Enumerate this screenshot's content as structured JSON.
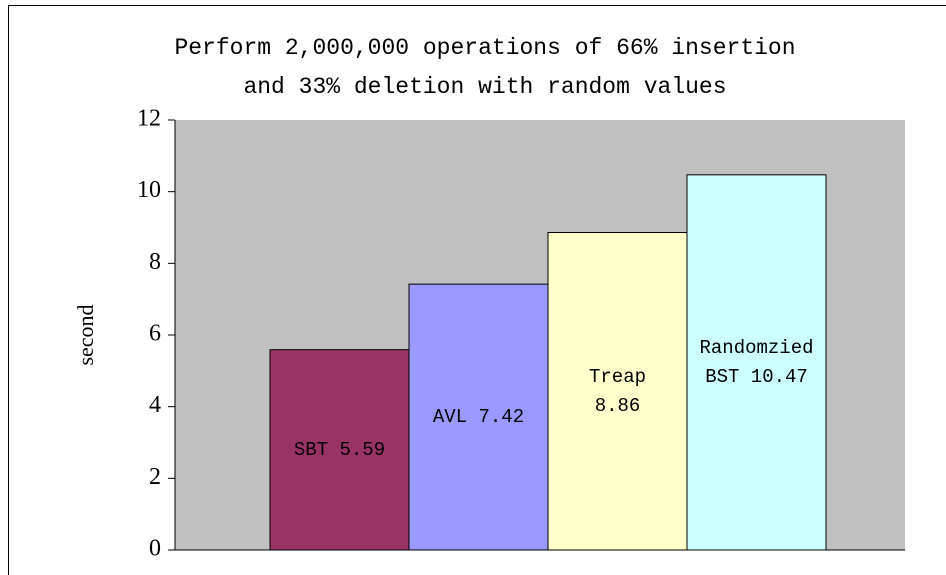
{
  "chart_data": {
    "type": "bar",
    "title": [
      "Perform 2,000,000 operations of 66% insertion",
      "and 33% deletion with random values"
    ],
    "ylabel": "second",
    "values": [
      5.59,
      7.42,
      8.86,
      10.47
    ],
    "value_labels": [
      [
        "SBT 5.59"
      ],
      [
        "AVL 7.42"
      ],
      [
        "Treap",
        "8.86"
      ],
      [
        "Randomzied",
        "BST 10.47"
      ]
    ],
    "colors": [
      "#993366",
      "#9999ff",
      "#ffffcc",
      "#ccffff"
    ],
    "ylim": [
      0,
      12
    ],
    "yticks": [
      0,
      2,
      4,
      6,
      8,
      10,
      12
    ]
  }
}
